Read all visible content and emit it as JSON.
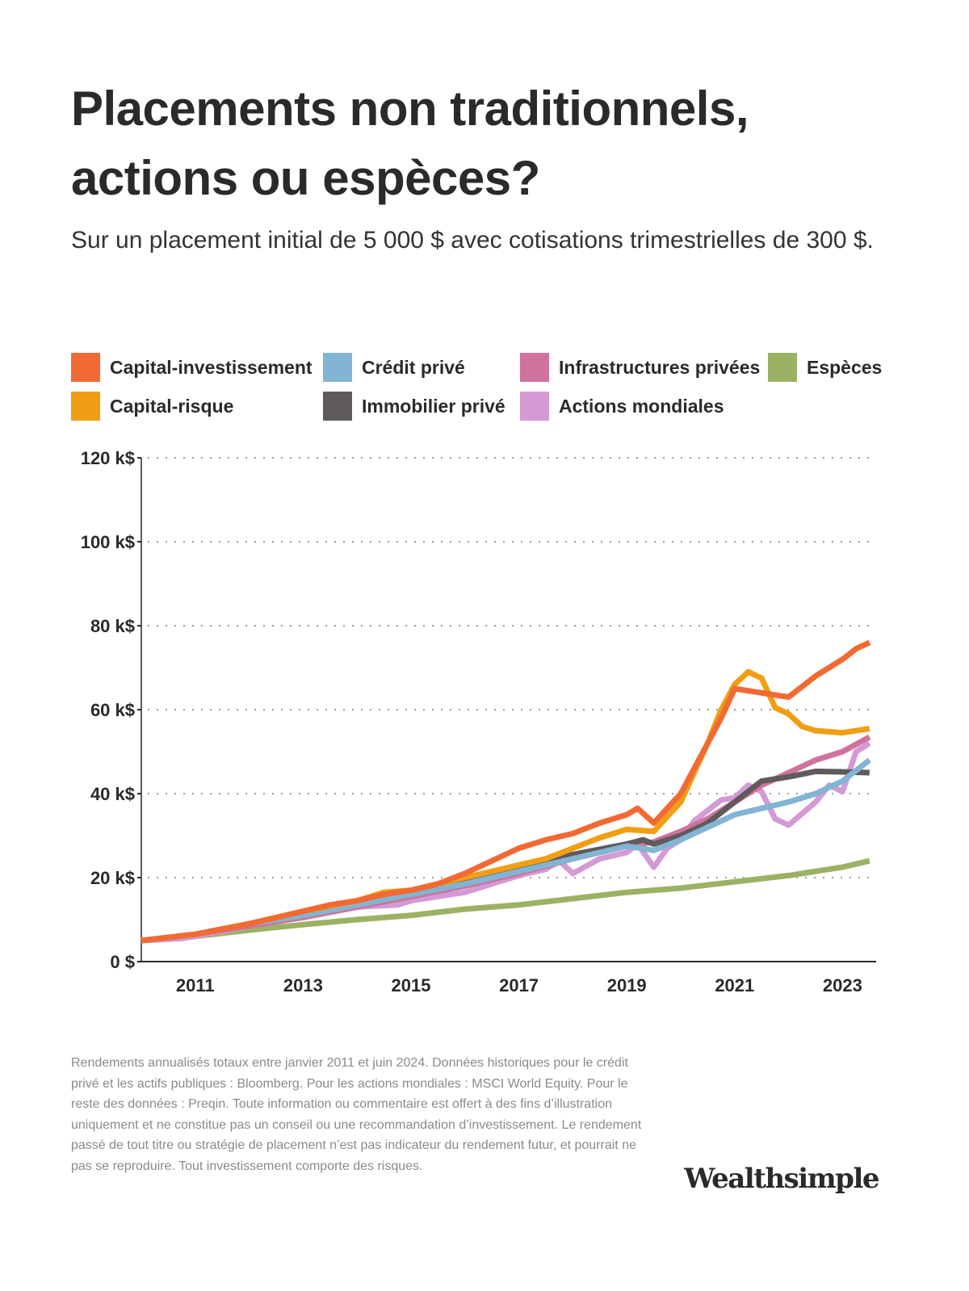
{
  "title": "Placements non traditionnels, actions ou espèces?",
  "subtitle": "Sur un placement initial de 5 000 $ avec cotisations trimestrielles de 300 $.",
  "footnote": "Rendements annualisés totaux entre janvier 2011 et juin 2024. Données historiques pour le crédit privé et les actifs publiques : Bloomberg. Pour les actions mondiales : MSCI World Equity. Pour le reste des données : Preqin. Toute information ou commentaire est offert à des fins d’illustration uniquement et ne constitue pas un conseil ou une recommandation d’investissement. Le rendement passé de tout titre ou stratégie de placement n’est pas indicateur du rendement futur, et pourrait ne pas se reproduire. Tout investissement comporte des risques.",
  "logo": "Wealthsimple",
  "chart_data": {
    "type": "line",
    "title": "",
    "xlabel": "",
    "ylabel": "",
    "xlim": [
      2010,
      2023.6
    ],
    "ylim": [
      0,
      120000
    ],
    "grid": "horizontal dotted",
    "legend_position": "top",
    "x_ticks": [
      2011,
      2013,
      2015,
      2017,
      2019,
      2021,
      2023
    ],
    "x_tick_labels": [
      "2011",
      "2013",
      "2015",
      "2017",
      "2019",
      "2021",
      "2023"
    ],
    "y_ticks": [
      0,
      20000,
      40000,
      60000,
      80000,
      100000,
      120000
    ],
    "y_tick_labels": [
      "0 $",
      "20 k$",
      "40 k$",
      "60 k$",
      "80 k$",
      "100 k$",
      "120 k$"
    ],
    "series": [
      {
        "name": "Capital-investissement",
        "color": "#F26A33",
        "x": [
          2010,
          2011,
          2012,
          2013,
          2013.5,
          2014,
          2014.5,
          2015,
          2015.5,
          2016,
          2016.5,
          2017,
          2017.5,
          2018,
          2018.5,
          2019,
          2019.2,
          2019.5,
          2020,
          2020.5,
          2020.75,
          2021,
          2021.5,
          2022,
          2022.5,
          2023,
          2023.25,
          2023.5
        ],
        "y": [
          5000,
          6500,
          9000,
          12000,
          13500,
          14500,
          16000,
          17000,
          18500,
          21000,
          24000,
          27000,
          29000,
          30500,
          33000,
          35000,
          36500,
          33000,
          40000,
          52000,
          58000,
          65000,
          64000,
          63000,
          68000,
          72000,
          74500,
          76000
        ]
      },
      {
        "name": "Capital-risque",
        "color": "#F09E13",
        "x": [
          2010,
          2011,
          2012,
          2013,
          2014,
          2014.5,
          2015,
          2016,
          2017,
          2017.5,
          2018,
          2018.5,
          2019,
          2019.5,
          2020,
          2020.5,
          2020.75,
          2021,
          2021.25,
          2021.5,
          2021.75,
          2022,
          2022.25,
          2022.5,
          2023,
          2023.5
        ],
        "y": [
          5000,
          6500,
          9000,
          12000,
          14500,
          16500,
          17000,
          20000,
          23000,
          24500,
          27000,
          29500,
          31500,
          31000,
          38000,
          52000,
          60000,
          66000,
          69000,
          67500,
          60500,
          59000,
          56000,
          55000,
          54500,
          55500
        ]
      },
      {
        "name": "Crédit privé",
        "color": "#82B4D4",
        "x": [
          2010,
          2011,
          2012,
          2013,
          2014,
          2015,
          2016,
          2017,
          2018,
          2019,
          2019.5,
          2020,
          2020.5,
          2021,
          2021.5,
          2022,
          2022.5,
          2023,
          2023.5
        ],
        "y": [
          5000,
          6500,
          9000,
          11000,
          13500,
          16000,
          18500,
          21500,
          24500,
          27500,
          26500,
          29000,
          32000,
          35000,
          36500,
          38000,
          40000,
          43000,
          48000
        ]
      },
      {
        "name": "Immobilier privé",
        "color": "#5F5B5C",
        "x": [
          2010,
          2011,
          2012,
          2013,
          2014,
          2015,
          2016,
          2017,
          2017.5,
          2018,
          2019,
          2019.3,
          2019.5,
          2020,
          2020.5,
          2021,
          2021.5,
          2022,
          2022.5,
          2023,
          2023.5
        ],
        "y": [
          5000,
          6500,
          9000,
          11500,
          14000,
          16500,
          19000,
          22500,
          24000,
          25500,
          28000,
          29000,
          28000,
          30000,
          33000,
          38000,
          43000,
          44000,
          45300,
          45200,
          45000
        ]
      },
      {
        "name": "Infrastructures privées",
        "color": "#D0729E",
        "x": [
          2010,
          2011,
          2012,
          2013,
          2014,
          2015,
          2016,
          2017,
          2018,
          2019,
          2019.5,
          2020,
          2020.5,
          2021,
          2021.5,
          2022,
          2022.5,
          2023,
          2023.5
        ],
        "y": [
          5000,
          6500,
          8500,
          10500,
          13000,
          15500,
          18000,
          21000,
          24500,
          27500,
          28500,
          31000,
          34000,
          38000,
          42000,
          45000,
          48000,
          50000,
          53500
        ]
      },
      {
        "name": "Actions mondiales",
        "color": "#D39AD6",
        "x": [
          2010,
          2010.75,
          2011,
          2012,
          2013,
          2014,
          2014.75,
          2015,
          2016,
          2017,
          2017.5,
          2017.75,
          2018,
          2018.5,
          2019,
          2019.2,
          2019.5,
          2019.75,
          2020,
          2020.25,
          2020.75,
          2021,
          2021.25,
          2021.5,
          2021.75,
          2022,
          2022.5,
          2022.75,
          2023,
          2023.25,
          2023.5
        ],
        "y": [
          5000,
          5500,
          6000,
          8500,
          11000,
          13000,
          13500,
          14500,
          16500,
          20500,
          22000,
          24000,
          21000,
          24500,
          26000,
          28000,
          22500,
          27000,
          29000,
          33500,
          38500,
          39000,
          42000,
          40500,
          34000,
          32500,
          38000,
          42000,
          40500,
          50000,
          52000
        ]
      },
      {
        "name": "Espèces",
        "color": "#9BB264",
        "x": [
          2010,
          2011,
          2012,
          2013,
          2014,
          2015,
          2016,
          2017,
          2018,
          2019,
          2020,
          2021,
          2022,
          2023,
          2023.5
        ],
        "y": [
          5000,
          6000,
          7500,
          8800,
          10000,
          11000,
          12500,
          13500,
          15000,
          16500,
          17500,
          19000,
          20500,
          22500,
          24000
        ]
      }
    ]
  }
}
